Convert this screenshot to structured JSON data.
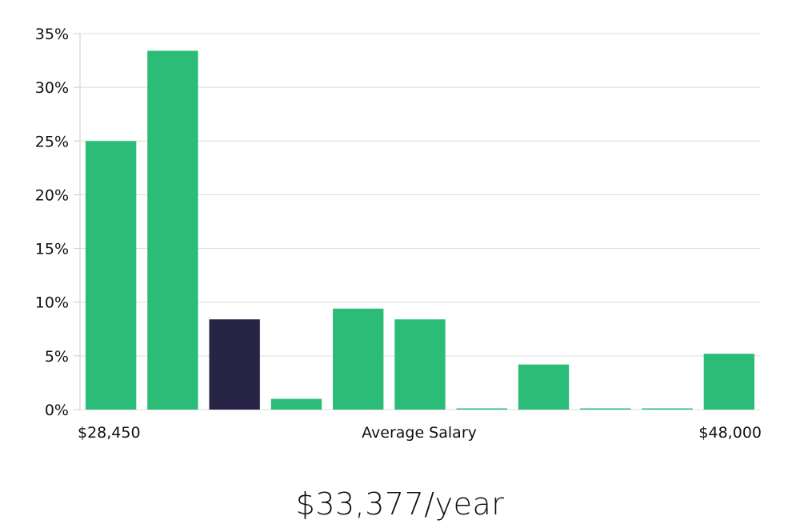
{
  "chart_data": {
    "type": "bar",
    "ylim": [
      0,
      35
    ],
    "yticks": [
      0,
      5,
      10,
      15,
      20,
      25,
      30,
      35
    ],
    "ytick_suffix": "%",
    "values": [
      25.0,
      33.4,
      8.4,
      1.0,
      9.4,
      8.4,
      0.0,
      4.2,
      0.0,
      0.0,
      5.2
    ],
    "highlight_index": 2,
    "xlabel_left": "$28,450",
    "xlabel_center": "Average Salary",
    "xlabel_right": "$48,000",
    "grid": true
  },
  "colors": {
    "bar": "#2bbd77",
    "bar_highlight": "#272445",
    "grid": "#dddddd",
    "axis": "#cccccc"
  },
  "summary": {
    "salary_text": "$33,377/year"
  }
}
